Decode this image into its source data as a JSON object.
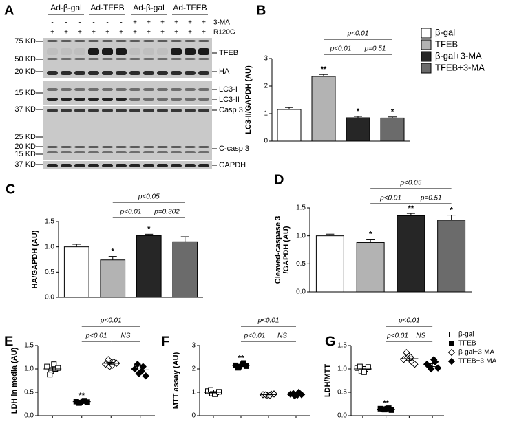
{
  "blot": {
    "panel": "A",
    "groups": [
      "Ad-β-gal",
      "Ad-TFEB",
      "Ad-β-gal",
      "Ad-TFEB"
    ],
    "rows": [
      {
        "name": "3-MA",
        "signs": [
          "-",
          "-",
          "-",
          "-",
          "-",
          "-",
          "+",
          "+",
          "+",
          "+",
          "+",
          "+"
        ]
      },
      {
        "name": "R120G",
        "signs": [
          "+",
          "+",
          "+",
          "+",
          "+",
          "+",
          "+",
          "+",
          "+",
          "+",
          "+",
          "+"
        ]
      }
    ],
    "mw": [
      "75 KD",
      "50 KD",
      "20 KD",
      "15 KD",
      "37 KD",
      "25 KD",
      "20 KD",
      "15 KD",
      "37 KD"
    ],
    "bands": [
      "TFEB",
      "HA",
      "LC3-I",
      "LC3-II",
      "Casp 3",
      "C-casp 3",
      "GAPDH"
    ]
  },
  "chart_data": [
    {
      "type": "bar",
      "panel": "B",
      "ylabel": [
        "LC3-II/GAPDH (AU)"
      ],
      "ylim": [
        0,
        3
      ],
      "yticks": [
        0,
        1,
        2,
        3
      ],
      "values": [
        1.15,
        2.35,
        0.85,
        0.84
      ],
      "errors": [
        0.07,
        0.07,
        0.05,
        0.04
      ],
      "colors": [
        "#ffffff",
        "#b3b3b3",
        "#262626",
        "#6b6b6b"
      ],
      "stars": [
        null,
        "**",
        "*",
        "*"
      ],
      "brackets": [
        {
          "label": "p<0.01",
          "from": 1,
          "to": 3
        },
        {
          "label": "p<0.01",
          "from": 1,
          "to": 2
        },
        {
          "label": "p=0.51",
          "from": 2,
          "to": 3
        }
      ],
      "legend": [
        "β-gal",
        "TFEB",
        "β-gal+3-MA",
        "TFEB+3-MA"
      ]
    },
    {
      "type": "bar",
      "panel": "C",
      "ylabel": [
        "HA/GAPDH (AU)"
      ],
      "ylim": [
        0,
        1.5
      ],
      "yticks": [
        {
          "value": 0,
          "label": "0.0"
        },
        {
          "value": 0.5,
          "label": "0.5"
        },
        {
          "value": 1,
          "label": "1.0"
        },
        {
          "value": 1.5,
          "label": "1.5"
        }
      ],
      "values": [
        1.0,
        0.74,
        1.22,
        1.1
      ],
      "errors": [
        0.05,
        0.07,
        0.03,
        0.1
      ],
      "colors": [
        "#ffffff",
        "#b3b3b3",
        "#262626",
        "#6b6b6b"
      ],
      "stars": [
        null,
        "*",
        "*",
        null
      ],
      "brackets": [
        {
          "label": "p<0.05",
          "from": 1,
          "to": 3
        },
        {
          "label": "p<0.01",
          "from": 1,
          "to": 2
        },
        {
          "label": "p=0.302",
          "from": 2,
          "to": 3
        }
      ]
    },
    {
      "type": "bar",
      "panel": "D",
      "ylabel": [
        "Cleaved-caspase 3",
        "/GAPDH (AU)"
      ],
      "ylim": [
        0,
        1.5
      ],
      "yticks": [
        {
          "value": 0,
          "label": "0.0"
        },
        {
          "value": 0.5,
          "label": "0.5"
        },
        {
          "value": 1,
          "label": "1.0"
        },
        {
          "value": 1.5,
          "label": "1.5"
        }
      ],
      "values": [
        1.0,
        0.88,
        1.36,
        1.28
      ],
      "errors": [
        0.03,
        0.06,
        0.04,
        0.09
      ],
      "colors": [
        "#ffffff",
        "#b3b3b3",
        "#262626",
        "#6b6b6b"
      ],
      "stars": [
        null,
        "*",
        "**",
        "*"
      ],
      "brackets": [
        {
          "label": "p<0.05",
          "from": 1,
          "to": 3
        },
        {
          "label": "p<0.01",
          "from": 1,
          "to": 2
        },
        {
          "label": "p=0.51",
          "from": 2,
          "to": 3
        }
      ]
    },
    {
      "type": "scatter",
      "panel": "E",
      "ylabel": [
        "LDH in media (AU)"
      ],
      "ylim": [
        0,
        1.5
      ],
      "yticks": [
        {
          "value": 0,
          "label": "0.0"
        },
        {
          "value": 0.5,
          "label": "0.5"
        },
        {
          "value": 1,
          "label": "1.0"
        },
        {
          "value": 1.5,
          "label": "1.5"
        }
      ],
      "values": [
        [
          1.05,
          0.95,
          1.0,
          0.88,
          1.1,
          1.02
        ],
        [
          0.3,
          0.28,
          0.32,
          0.27,
          0.31,
          0.29
        ],
        [
          1.1,
          1.05,
          1.15,
          1.2,
          1.08,
          1.12
        ],
        [
          1.0,
          0.9,
          1.05,
          1.1,
          0.95,
          0.85
        ]
      ],
      "means": [
        1.0,
        0.3,
        1.12,
        0.98
      ],
      "errors": [
        0.03,
        0.01,
        0.02,
        0.04
      ],
      "markers": [
        "open-square",
        "square",
        "open-diamond",
        "diamond"
      ],
      "stars": [
        null,
        "**",
        null,
        null
      ],
      "brackets": [
        {
          "label": "p<0.01",
          "from": 1,
          "to": 3
        },
        {
          "label": "p<0.01",
          "from": 1,
          "to": 2
        },
        {
          "label": "NS",
          "from": 2,
          "to": 3
        }
      ]
    },
    {
      "type": "scatter",
      "panel": "F",
      "ylabel": [
        "MTT assay (AU)"
      ],
      "ylim": [
        0,
        3
      ],
      "yticks": [
        0,
        1,
        2,
        3
      ],
      "values": [
        [
          1.05,
          0.95,
          1.0,
          1.1,
          0.92,
          1.02
        ],
        [
          2.15,
          2.1,
          2.25,
          2.05,
          2.2,
          2.12
        ],
        [
          0.9,
          0.88,
          0.92,
          0.9,
          0.87,
          0.93
        ],
        [
          0.92,
          0.85,
          1.0,
          0.95,
          0.88,
          0.9
        ]
      ],
      "means": [
        1.0,
        2.15,
        0.9,
        0.92
      ],
      "errors": [
        0.03,
        0.03,
        0.01,
        0.02
      ],
      "markers": [
        "open-square",
        "square",
        "open-diamond",
        "diamond"
      ],
      "stars": [
        null,
        "**",
        null,
        null
      ],
      "brackets": [
        {
          "label": "p<0.01",
          "from": 1,
          "to": 3
        },
        {
          "label": "p<0.01",
          "from": 1,
          "to": 2
        },
        {
          "label": "NS",
          "from": 2,
          "to": 3
        }
      ]
    },
    {
      "type": "scatter",
      "panel": "G",
      "ylabel": [
        "LDH/MTT"
      ],
      "ylim": [
        0,
        1.5
      ],
      "yticks": [
        {
          "value": 0,
          "label": "0.0"
        },
        {
          "value": 0.5,
          "label": "0.5"
        },
        {
          "value": 1,
          "label": "1.0"
        },
        {
          "value": 1.5,
          "label": "1.5"
        }
      ],
      "values": [
        [
          1.02,
          0.95,
          1.0,
          1.05,
          0.93,
          1.04
        ],
        [
          0.15,
          0.13,
          0.16,
          0.14,
          0.15,
          0.12
        ],
        [
          1.2,
          1.3,
          1.15,
          1.35,
          1.25,
          1.1
        ],
        [
          1.1,
          1.0,
          1.15,
          1.05,
          1.2,
          1.02
        ]
      ],
      "means": [
        1.0,
        0.14,
        1.22,
        1.08
      ],
      "errors": [
        0.02,
        0.01,
        0.04,
        0.03
      ],
      "markers": [
        "open-square",
        "square",
        "open-diamond",
        "diamond"
      ],
      "stars": [
        null,
        "**",
        null,
        null
      ],
      "brackets": [
        {
          "label": "p<0.01",
          "from": 1,
          "to": 3
        },
        {
          "label": "p<0.01",
          "from": 1,
          "to": 2
        },
        {
          "label": "NS",
          "from": 2,
          "to": 3
        }
      ],
      "legend": [
        "β-gal",
        "TFEB",
        "β-gal+3-MA",
        "TFEB+3-MA"
      ]
    }
  ]
}
